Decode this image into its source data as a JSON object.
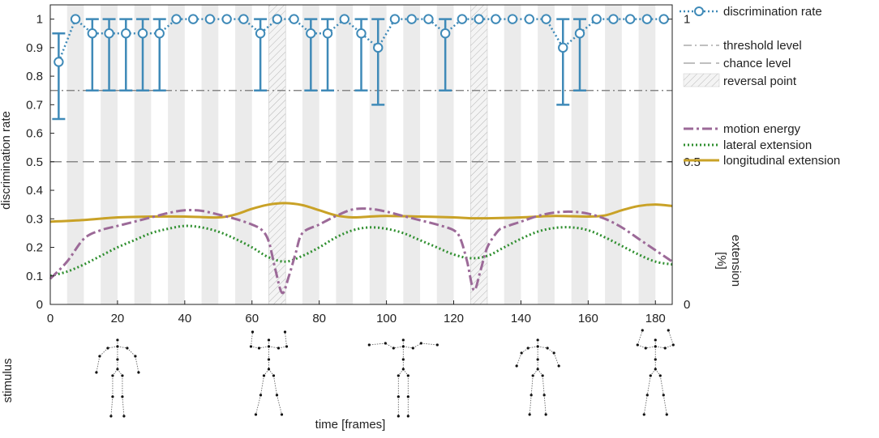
{
  "chart_data": {
    "type": "line",
    "xlabel": "time [frames]",
    "ylabel": "discrimination rate",
    "y2label_line1": "extension",
    "y2label_line2": "[%]",
    "stimulus_label": "stimulus",
    "xlim": [
      0,
      185
    ],
    "ylim": [
      0,
      1.05
    ],
    "y2lim": [
      0,
      1.05
    ],
    "x_ticks": [
      0,
      20,
      40,
      60,
      80,
      100,
      120,
      140,
      160,
      180
    ],
    "y_ticks": [
      0,
      0.1,
      0.2,
      0.3,
      0.4,
      0.5,
      0.6,
      0.7,
      0.8,
      0.9,
      1
    ],
    "y_tick_labels": [
      "0",
      "0.1",
      "0.2",
      "0.3",
      "0.4",
      "0.5",
      "0.6",
      "0.7",
      "0.8",
      "0.9",
      "1"
    ],
    "y2_ticks": [
      0,
      0.5,
      1
    ],
    "y2_tick_labels": [
      "0",
      "0.5",
      "1"
    ],
    "grid": false,
    "legend_position": "right",
    "threshold_level": 0.75,
    "chance_level": 0.5,
    "reversal_points": [
      [
        65,
        70
      ],
      [
        125,
        130
      ]
    ],
    "frame_band_edges": [
      5,
      10,
      15,
      20,
      25,
      30,
      35,
      40,
      45,
      50,
      55,
      60,
      65,
      70,
      75,
      80,
      85,
      90,
      95,
      100,
      105,
      110,
      115,
      120,
      125,
      130,
      135,
      140,
      145,
      150,
      155,
      160,
      165,
      170,
      175,
      180,
      185
    ],
    "legend": {
      "discrimination": "discrimination rate",
      "threshold": "threshold level",
      "chance": "chance level",
      "reversal": "reversal point",
      "motion": "motion energy",
      "lateral": "lateral extension",
      "longitudinal": "longitudinal extension"
    },
    "discrimination_rate": {
      "x": [
        2.5,
        7.5,
        12.5,
        17.5,
        22.5,
        27.5,
        32.5,
        37.5,
        42.5,
        47.5,
        52.5,
        57.5,
        62.5,
        67.5,
        72.5,
        77.5,
        82.5,
        87.5,
        92.5,
        97.5,
        102.5,
        107.5,
        112.5,
        117.5,
        122.5,
        127.5,
        132.5,
        137.5,
        142.5,
        147.5,
        152.5,
        157.5,
        162.5,
        167.5,
        172.5,
        177.5,
        182.5
      ],
      "y": [
        0.85,
        1,
        0.95,
        0.95,
        0.95,
        0.95,
        0.95,
        1,
        1,
        1,
        1,
        1,
        0.95,
        1,
        1,
        0.95,
        0.95,
        1,
        0.95,
        0.9,
        1,
        1,
        1,
        0.95,
        1,
        1,
        1,
        1,
        1,
        1,
        0.9,
        0.95,
        1,
        1,
        1,
        1,
        1
      ],
      "err_low": [
        0.65,
        1,
        0.75,
        0.75,
        0.75,
        0.75,
        0.75,
        1,
        1,
        1,
        1,
        1,
        0.75,
        1,
        1,
        0.75,
        0.75,
        1,
        0.75,
        0.7,
        1,
        1,
        1,
        0.75,
        1,
        1,
        1,
        1,
        1,
        1,
        0.7,
        0.75,
        1,
        1,
        1,
        1,
        1
      ],
      "err_high": [
        0.95,
        1,
        1,
        1,
        1,
        1,
        1,
        1,
        1,
        1,
        1,
        1,
        1,
        1,
        1,
        1,
        1,
        1,
        1,
        1,
        1,
        1,
        1,
        1,
        1,
        1,
        1,
        1,
        1,
        1,
        1,
        1,
        1,
        1,
        1,
        1,
        1
      ]
    },
    "motion_energy": {
      "x": [
        0,
        5,
        10,
        15,
        20,
        25,
        30,
        35,
        40,
        45,
        50,
        55,
        60,
        63,
        65,
        67,
        69,
        71,
        73,
        75,
        80,
        85,
        90,
        95,
        100,
        105,
        110,
        115,
        120,
        122,
        124,
        126,
        128,
        130,
        133,
        135,
        140,
        145,
        150,
        155,
        160,
        165,
        170,
        175,
        180,
        185
      ],
      "y": [
        0.09,
        0.15,
        0.23,
        0.26,
        0.275,
        0.29,
        0.305,
        0.32,
        0.33,
        0.328,
        0.315,
        0.3,
        0.28,
        0.26,
        0.22,
        0.12,
        0.04,
        0.1,
        0.18,
        0.25,
        0.28,
        0.31,
        0.333,
        0.335,
        0.325,
        0.31,
        0.295,
        0.28,
        0.26,
        0.23,
        0.15,
        0.05,
        0.12,
        0.2,
        0.255,
        0.27,
        0.29,
        0.31,
        0.322,
        0.325,
        0.318,
        0.3,
        0.27,
        0.23,
        0.19,
        0.15
      ]
    },
    "lateral_extension": {
      "x": [
        0,
        5,
        10,
        15,
        20,
        25,
        30,
        35,
        40,
        45,
        50,
        55,
        60,
        65,
        70,
        75,
        80,
        85,
        90,
        95,
        100,
        105,
        110,
        115,
        120,
        125,
        130,
        135,
        140,
        145,
        150,
        155,
        160,
        165,
        170,
        175,
        180,
        185
      ],
      "y": [
        0.1,
        0.115,
        0.14,
        0.17,
        0.2,
        0.225,
        0.25,
        0.265,
        0.275,
        0.27,
        0.255,
        0.23,
        0.2,
        0.165,
        0.15,
        0.17,
        0.2,
        0.235,
        0.26,
        0.27,
        0.265,
        0.25,
        0.225,
        0.2,
        0.175,
        0.162,
        0.17,
        0.2,
        0.23,
        0.255,
        0.268,
        0.27,
        0.26,
        0.235,
        0.205,
        0.175,
        0.15,
        0.14
      ]
    },
    "longitudinal_extension": {
      "x": [
        0,
        10,
        20,
        30,
        40,
        50,
        55,
        60,
        65,
        70,
        75,
        80,
        85,
        90,
        95,
        100,
        110,
        120,
        125,
        130,
        140,
        150,
        160,
        165,
        170,
        175,
        180,
        185
      ],
      "y": [
        0.29,
        0.296,
        0.305,
        0.308,
        0.308,
        0.305,
        0.315,
        0.335,
        0.35,
        0.355,
        0.348,
        0.33,
        0.312,
        0.305,
        0.308,
        0.31,
        0.308,
        0.305,
        0.302,
        0.302,
        0.305,
        0.31,
        0.308,
        0.312,
        0.33,
        0.345,
        0.35,
        0.345
      ]
    },
    "stimulus_frames": [
      20,
      65,
      105,
      145,
      180
    ]
  }
}
